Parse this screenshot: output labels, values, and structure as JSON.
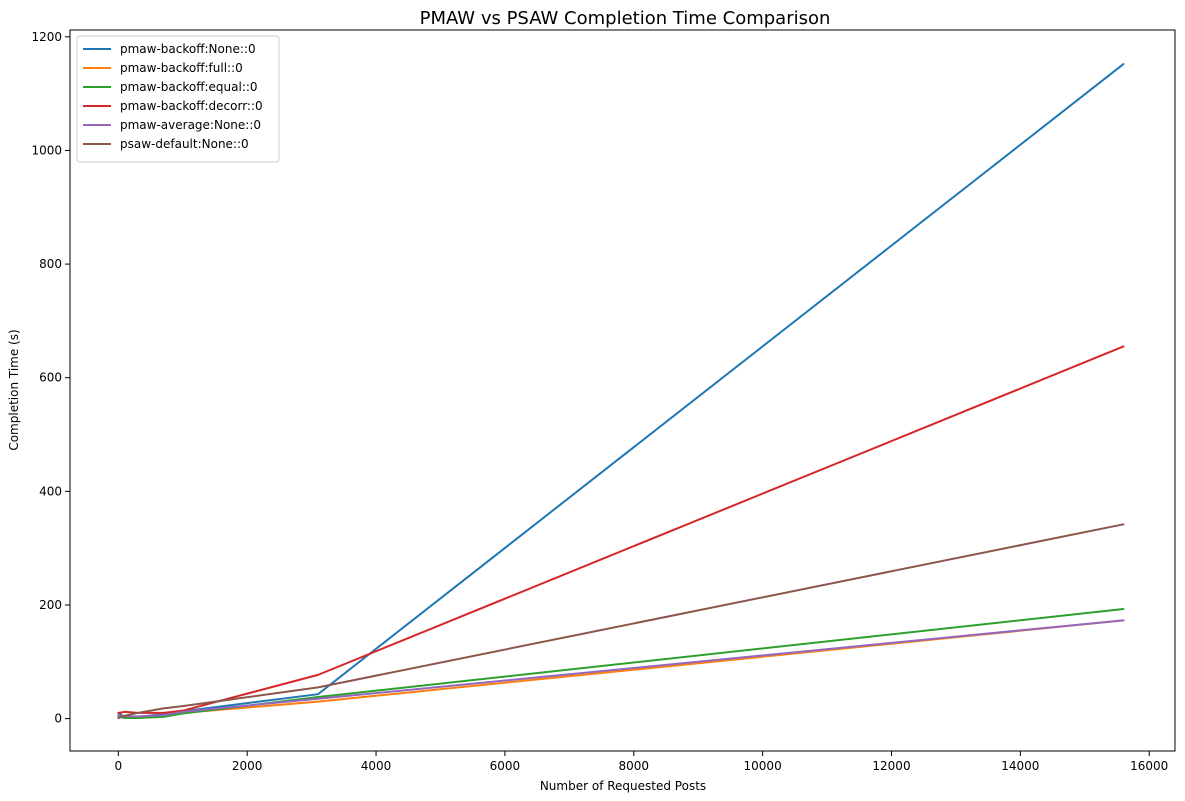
{
  "chart_data": {
    "type": "line",
    "title": "PMAW vs PSAW Completion Time Comparison",
    "xlabel": "Number of Requested Posts",
    "ylabel": "Completion Time (s)",
    "xlim": [
      -750,
      16400
    ],
    "ylim": [
      -57,
      1212
    ],
    "xticks": [
      0,
      2000,
      4000,
      6000,
      8000,
      10000,
      12000,
      14000,
      16000
    ],
    "yticks": [
      0,
      200,
      400,
      600,
      800,
      1000,
      1200
    ],
    "grid": false,
    "legend_position": "top-left",
    "series": [
      {
        "name": "pmaw-backoff:None::0",
        "color": "#1f77b4",
        "x": [
          0,
          100,
          300,
          700,
          1000,
          3100,
          15600
        ],
        "y": [
          10,
          3,
          3,
          8,
          13,
          43,
          1152
        ]
      },
      {
        "name": "pmaw-backoff:full::0",
        "color": "#ff7f0e",
        "x": [
          0,
          100,
          300,
          700,
          1000,
          3100,
          15600
        ],
        "y": [
          5,
          2,
          2,
          4,
          10,
          30,
          173
        ]
      },
      {
        "name": "pmaw-backoff:equal::0",
        "color": "#2ca02c",
        "x": [
          0,
          100,
          300,
          700,
          1000,
          3100,
          15600
        ],
        "y": [
          4,
          1,
          1,
          3,
          9,
          38,
          193
        ]
      },
      {
        "name": "pmaw-backoff:decorr::0",
        "color": "#d62728",
        "x": [
          0,
          100,
          300,
          700,
          1000,
          3100,
          15600
        ],
        "y": [
          10,
          12,
          10,
          10,
          14,
          77,
          655
        ]
      },
      {
        "name": "pmaw-average:None::0",
        "color": "#9467bd",
        "x": [
          0,
          100,
          300,
          700,
          1000,
          3100,
          15600
        ],
        "y": [
          6,
          4,
          4,
          6,
          12,
          35,
          173
        ]
      },
      {
        "name": "psaw-default:None::0",
        "color": "#8c564b",
        "x": [
          0,
          100,
          300,
          700,
          1000,
          3100,
          15600
        ],
        "y": [
          1,
          5,
          10,
          18,
          22,
          55,
          342
        ]
      }
    ]
  }
}
